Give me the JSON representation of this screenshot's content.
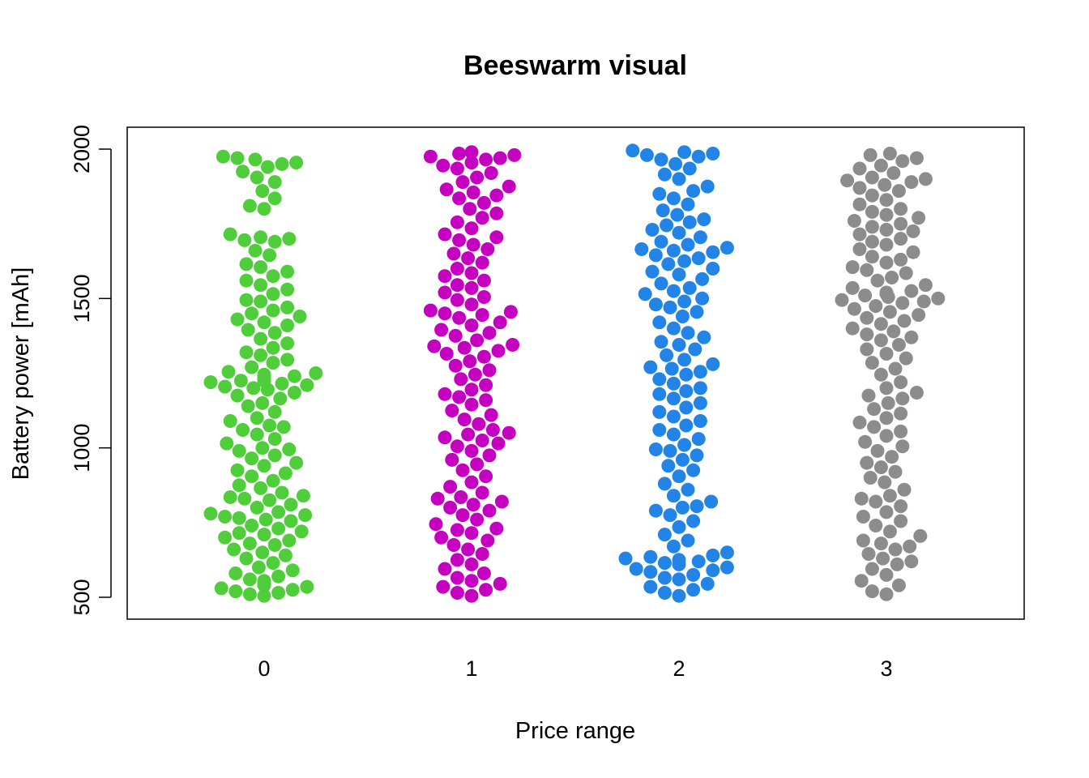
{
  "chart_data": {
    "type": "scatter",
    "subtype": "beeswarm",
    "title": "Beeswarm visual",
    "xlabel": "Price range",
    "ylabel": "Battery power [mAh]",
    "categories": [
      "0",
      "1",
      "2",
      "3"
    ],
    "y_ticks": [
      500,
      1000,
      1500,
      2000
    ],
    "ylim": [
      425,
      2075
    ],
    "grid": false,
    "legend": "none",
    "series": [
      {
        "category": "0",
        "color": "#4fcd3a",
        "values": [
          1975,
          1970,
          1965,
          1955,
          1950,
          1940,
          1925,
          1905,
          1890,
          1860,
          1835,
          1810,
          1800,
          1715,
          1705,
          1700,
          1695,
          1690,
          1660,
          1645,
          1615,
          1605,
          1590,
          1575,
          1560,
          1545,
          1530,
          1515,
          1495,
          1490,
          1470,
          1460,
          1450,
          1440,
          1430,
          1420,
          1410,
          1395,
          1385,
          1365,
          1350,
          1335,
          1320,
          1310,
          1295,
          1285,
          1270,
          1255,
          1250,
          1245,
          1240,
          1235,
          1230,
          1225,
          1225,
          1220,
          1215,
          1210,
          1205,
          1200,
          1195,
          1185,
          1175,
          1165,
          1150,
          1140,
          1120,
          1100,
          1090,
          1075,
          1070,
          1060,
          1045,
          1030,
          1015,
          1000,
          995,
          990,
          975,
          965,
          950,
          940,
          925,
          915,
          905,
          890,
          875,
          865,
          850,
          840,
          835,
          830,
          825,
          810,
          800,
          785,
          780,
          775,
          770,
          765,
          760,
          755,
          740,
          730,
          720,
          715,
          710,
          700,
          690,
          680,
          675,
          660,
          650,
          640,
          630,
          615,
          600,
          590,
          580,
          570,
          560,
          555,
          550,
          545,
          540,
          535,
          530,
          525,
          520,
          515,
          510,
          505
        ]
      },
      {
        "category": "1",
        "color": "#c500c0",
        "values": [
          1990,
          1985,
          1980,
          1975,
          1970,
          1965,
          1955,
          1945,
          1935,
          1920,
          1905,
          1890,
          1875,
          1865,
          1855,
          1845,
          1835,
          1820,
          1800,
          1785,
          1770,
          1755,
          1735,
          1715,
          1705,
          1695,
          1680,
          1665,
          1650,
          1635,
          1620,
          1600,
          1585,
          1575,
          1560,
          1545,
          1535,
          1520,
          1505,
          1495,
          1480,
          1460,
          1455,
          1450,
          1445,
          1435,
          1420,
          1410,
          1395,
          1385,
          1375,
          1360,
          1345,
          1340,
          1335,
          1325,
          1315,
          1305,
          1290,
          1275,
          1260,
          1245,
          1230,
          1210,
          1195,
          1180,
          1170,
          1160,
          1145,
          1125,
          1110,
          1095,
          1080,
          1060,
          1050,
          1045,
          1035,
          1025,
          1015,
          1005,
          990,
          975,
          960,
          945,
          925,
          905,
          885,
          870,
          850,
          835,
          830,
          820,
          810,
          800,
          790,
          775,
          760,
          745,
          730,
          725,
          715,
          700,
          690,
          675,
          660,
          645,
          625,
          610,
          595,
          580,
          565,
          555,
          545,
          535,
          525,
          515,
          505
        ]
      },
      {
        "category": "2",
        "color": "#2284e6",
        "values": [
          1995,
          1990,
          1985,
          1980,
          1975,
          1965,
          1950,
          1935,
          1915,
          1900,
          1875,
          1860,
          1850,
          1835,
          1815,
          1795,
          1780,
          1765,
          1755,
          1745,
          1730,
          1720,
          1705,
          1690,
          1680,
          1670,
          1665,
          1660,
          1655,
          1645,
          1635,
          1625,
          1615,
          1600,
          1590,
          1580,
          1565,
          1550,
          1535,
          1525,
          1515,
          1500,
          1490,
          1480,
          1470,
          1455,
          1440,
          1420,
          1400,
          1385,
          1370,
          1355,
          1345,
          1330,
          1310,
          1295,
          1280,
          1270,
          1265,
          1255,
          1245,
          1230,
          1215,
          1200,
          1190,
          1180,
          1165,
          1150,
          1135,
          1120,
          1105,
          1090,
          1075,
          1060,
          1045,
          1030,
          1010,
          995,
          990,
          975,
          960,
          940,
          925,
          905,
          880,
          860,
          840,
          820,
          805,
          800,
          790,
          775,
          755,
          735,
          710,
          690,
          670,
          650,
          640,
          635,
          630,
          625,
          620,
          615,
          610,
          600,
          595,
          590,
          585,
          575,
          565,
          560,
          545,
          535,
          525,
          515,
          505
        ]
      },
      {
        "category": "3",
        "color": "#8c8c8c",
        "values": [
          1985,
          1980,
          1970,
          1960,
          1945,
          1935,
          1920,
          1905,
          1900,
          1895,
          1890,
          1880,
          1870,
          1860,
          1845,
          1830,
          1815,
          1800,
          1790,
          1780,
          1770,
          1760,
          1750,
          1740,
          1730,
          1725,
          1715,
          1700,
          1690,
          1680,
          1665,
          1655,
          1640,
          1630,
          1620,
          1605,
          1595,
          1585,
          1570,
          1560,
          1545,
          1535,
          1525,
          1520,
          1515,
          1510,
          1505,
          1500,
          1495,
          1490,
          1485,
          1475,
          1465,
          1455,
          1445,
          1435,
          1425,
          1415,
          1400,
          1390,
          1380,
          1370,
          1360,
          1345,
          1330,
          1315,
          1300,
          1285,
          1265,
          1245,
          1220,
          1200,
          1185,
          1175,
          1165,
          1150,
          1130,
          1115,
          1100,
          1085,
          1070,
          1055,
          1040,
          1020,
          1005,
          990,
          970,
          950,
          935,
          920,
          900,
          885,
          860,
          840,
          830,
          820,
          805,
          785,
          770,
          755,
          740,
          720,
          705,
          690,
          680,
          670,
          660,
          645,
          630,
          620,
          610,
          595,
          575,
          555,
          540,
          520,
          510
        ]
      }
    ]
  }
}
